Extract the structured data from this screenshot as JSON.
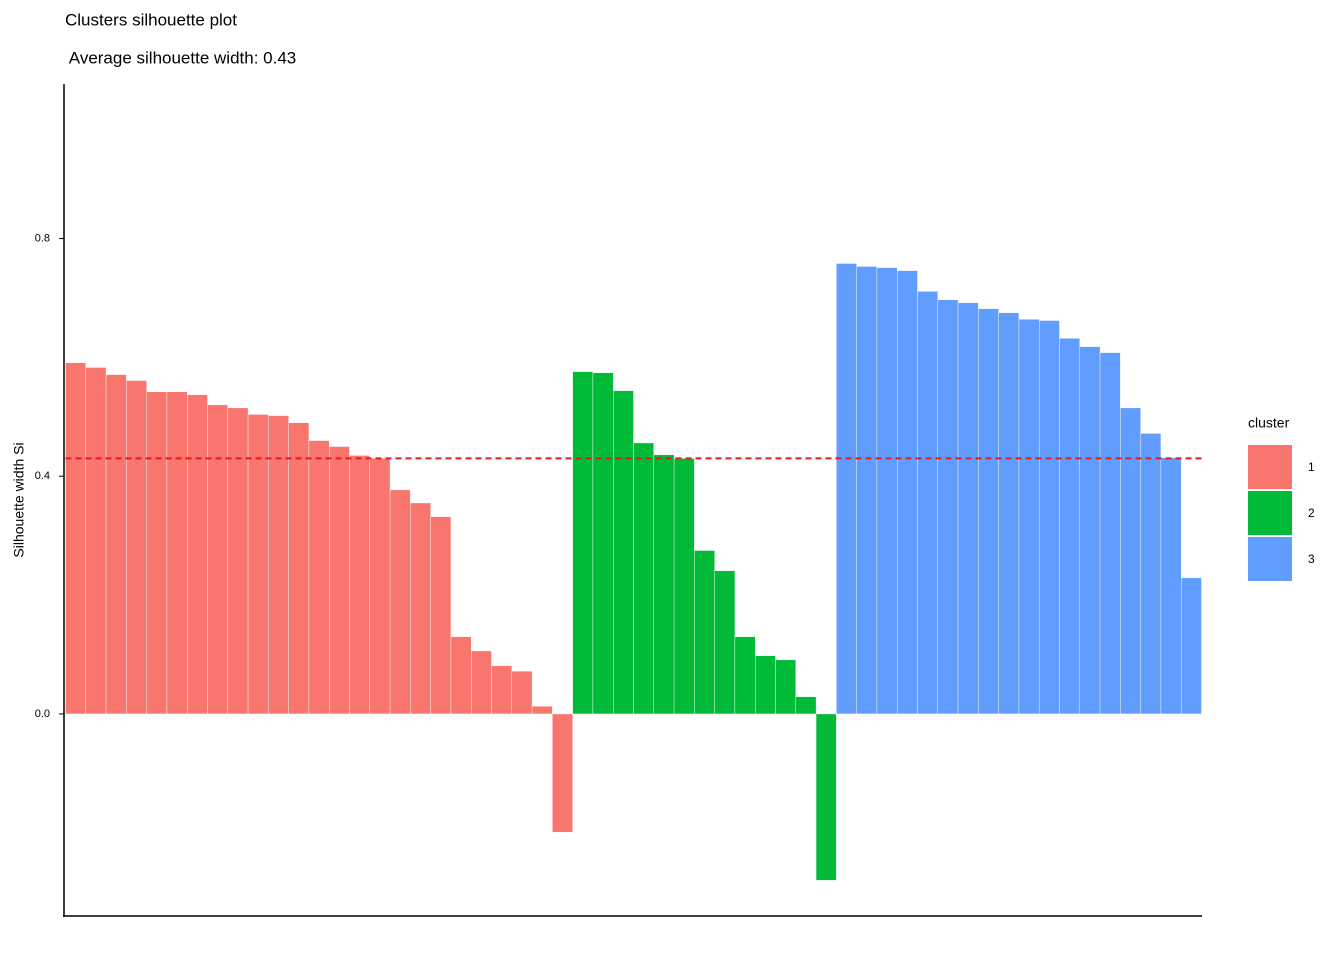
{
  "chart_data": {
    "type": "bar",
    "title": "Clusters silhouette plot",
    "subtitle": " Average silhouette width: 0.43",
    "y_label": "Silhouette width Si",
    "ylim": [
      -0.34,
      1.06
    ],
    "yticks": [
      {
        "value": 0,
        "label": "0.0"
      },
      0.4,
      {
        "value": 0.8,
        "label": "0.8"
      }
    ],
    "average": 0.43,
    "average_color": "#e41a1c",
    "legend_title": "cluster",
    "legend_position": "right",
    "series": [
      {
        "name": "1",
        "color": "#F8766D",
        "values": [
          0.591,
          0.583,
          0.571,
          0.561,
          0.542,
          0.542,
          0.537,
          0.52,
          0.515,
          0.504,
          0.502,
          0.49,
          0.46,
          0.45,
          0.435,
          0.43,
          0.377,
          0.355,
          0.332,
          0.13,
          0.106,
          0.081,
          0.072,
          0.013,
          -0.199
        ]
      },
      {
        "name": "2",
        "color": "#00BA38",
        "values": [
          0.576,
          0.574,
          0.544,
          0.456,
          0.436,
          0.43,
          0.275,
          0.241,
          0.13,
          0.098,
          0.091,
          0.029,
          -0.28
        ]
      },
      {
        "name": "3",
        "color": "#619CFF",
        "values": [
          0.758,
          0.753,
          0.751,
          0.746,
          0.711,
          0.697,
          0.692,
          0.682,
          0.675,
          0.664,
          0.662,
          0.632,
          0.618,
          0.608,
          0.515,
          0.472,
          0.431,
          0.229
        ]
      }
    ]
  }
}
